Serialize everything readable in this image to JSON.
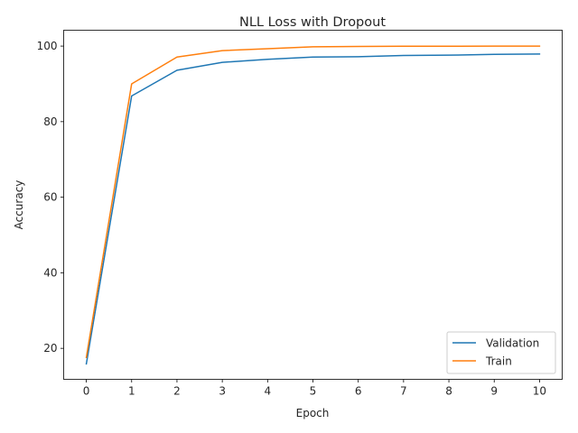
{
  "chart_data": {
    "type": "line",
    "title": "NLL Loss with Dropout",
    "xlabel": "Epoch",
    "ylabel": "Accuracy",
    "x": [
      0,
      1,
      2,
      3,
      4,
      5,
      6,
      7,
      8,
      9,
      10
    ],
    "xticks": [
      "0",
      "1",
      "2",
      "3",
      "4",
      "5",
      "6",
      "7",
      "8",
      "9",
      "10"
    ],
    "yticks": [
      "20",
      "40",
      "60",
      "80",
      "100"
    ],
    "xlim": [
      -0.5,
      10.5
    ],
    "ylim": [
      11.8,
      104.2
    ],
    "grid": false,
    "legend_position": "lower-right",
    "series": [
      {
        "name": "Validation",
        "color": "#1f77b4",
        "values": [
          15.9,
          86.8,
          93.6,
          95.7,
          96.5,
          97.1,
          97.2,
          97.5,
          97.6,
          97.8,
          97.9
        ]
      },
      {
        "name": "Train",
        "color": "#ff7f0e",
        "values": [
          17.6,
          90.0,
          97.1,
          98.8,
          99.3,
          99.8,
          99.9,
          99.95,
          99.95,
          100.0,
          100.0
        ]
      }
    ]
  }
}
